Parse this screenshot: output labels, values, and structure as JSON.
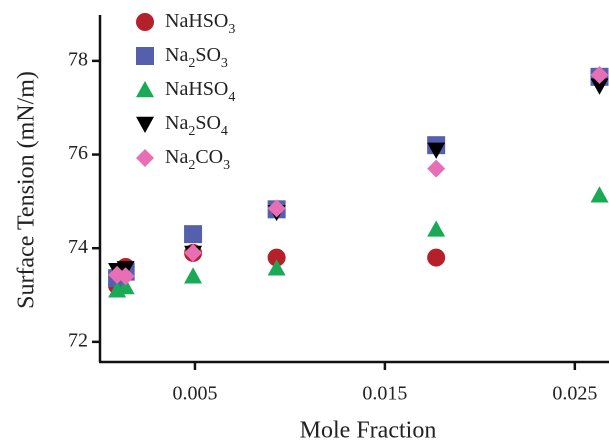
{
  "chart_data": {
    "type": "scatter",
    "x_label": "Mole Fraction",
    "y_label": "Surface Tension (mN/m)",
    "x": [
      0.0009,
      0.00135,
      0.0049,
      0.0093,
      0.0177,
      0.0263
    ],
    "series": [
      {
        "name": "NaHSO3",
        "color": "#b5212b",
        "marker": "circle",
        "values": [
          73.2,
          73.6,
          73.9,
          73.8,
          73.8,
          null
        ]
      },
      {
        "name": "Na2SO3",
        "color": "#5560ad",
        "marker": "square",
        "values": [
          73.36,
          73.5,
          74.3,
          74.83,
          76.2,
          77.66
        ]
      },
      {
        "name": "NaHSO4",
        "color": "#1aaa55",
        "marker": "triangle-up",
        "values": [
          73.1,
          73.17,
          73.4,
          73.57,
          74.4,
          75.13
        ]
      },
      {
        "name": "Na2SO4",
        "color": "#000000",
        "marker": "triangle-down",
        "values": [
          73.53,
          73.57,
          73.9,
          74.77,
          76.1,
          77.47
        ]
      },
      {
        "name": "Na2CO3",
        "color": "#e86fb5",
        "marker": "diamond",
        "values": [
          73.43,
          73.4,
          73.9,
          74.85,
          75.7,
          77.7
        ]
      }
    ],
    "xlim": [
      0,
      0.0268
    ],
    "ylim": [
      71.57,
      78.98
    ],
    "xticks": [
      0.005,
      0.015,
      0.025
    ],
    "yticks": [
      72,
      74,
      76,
      78
    ],
    "legend": "upper left"
  }
}
